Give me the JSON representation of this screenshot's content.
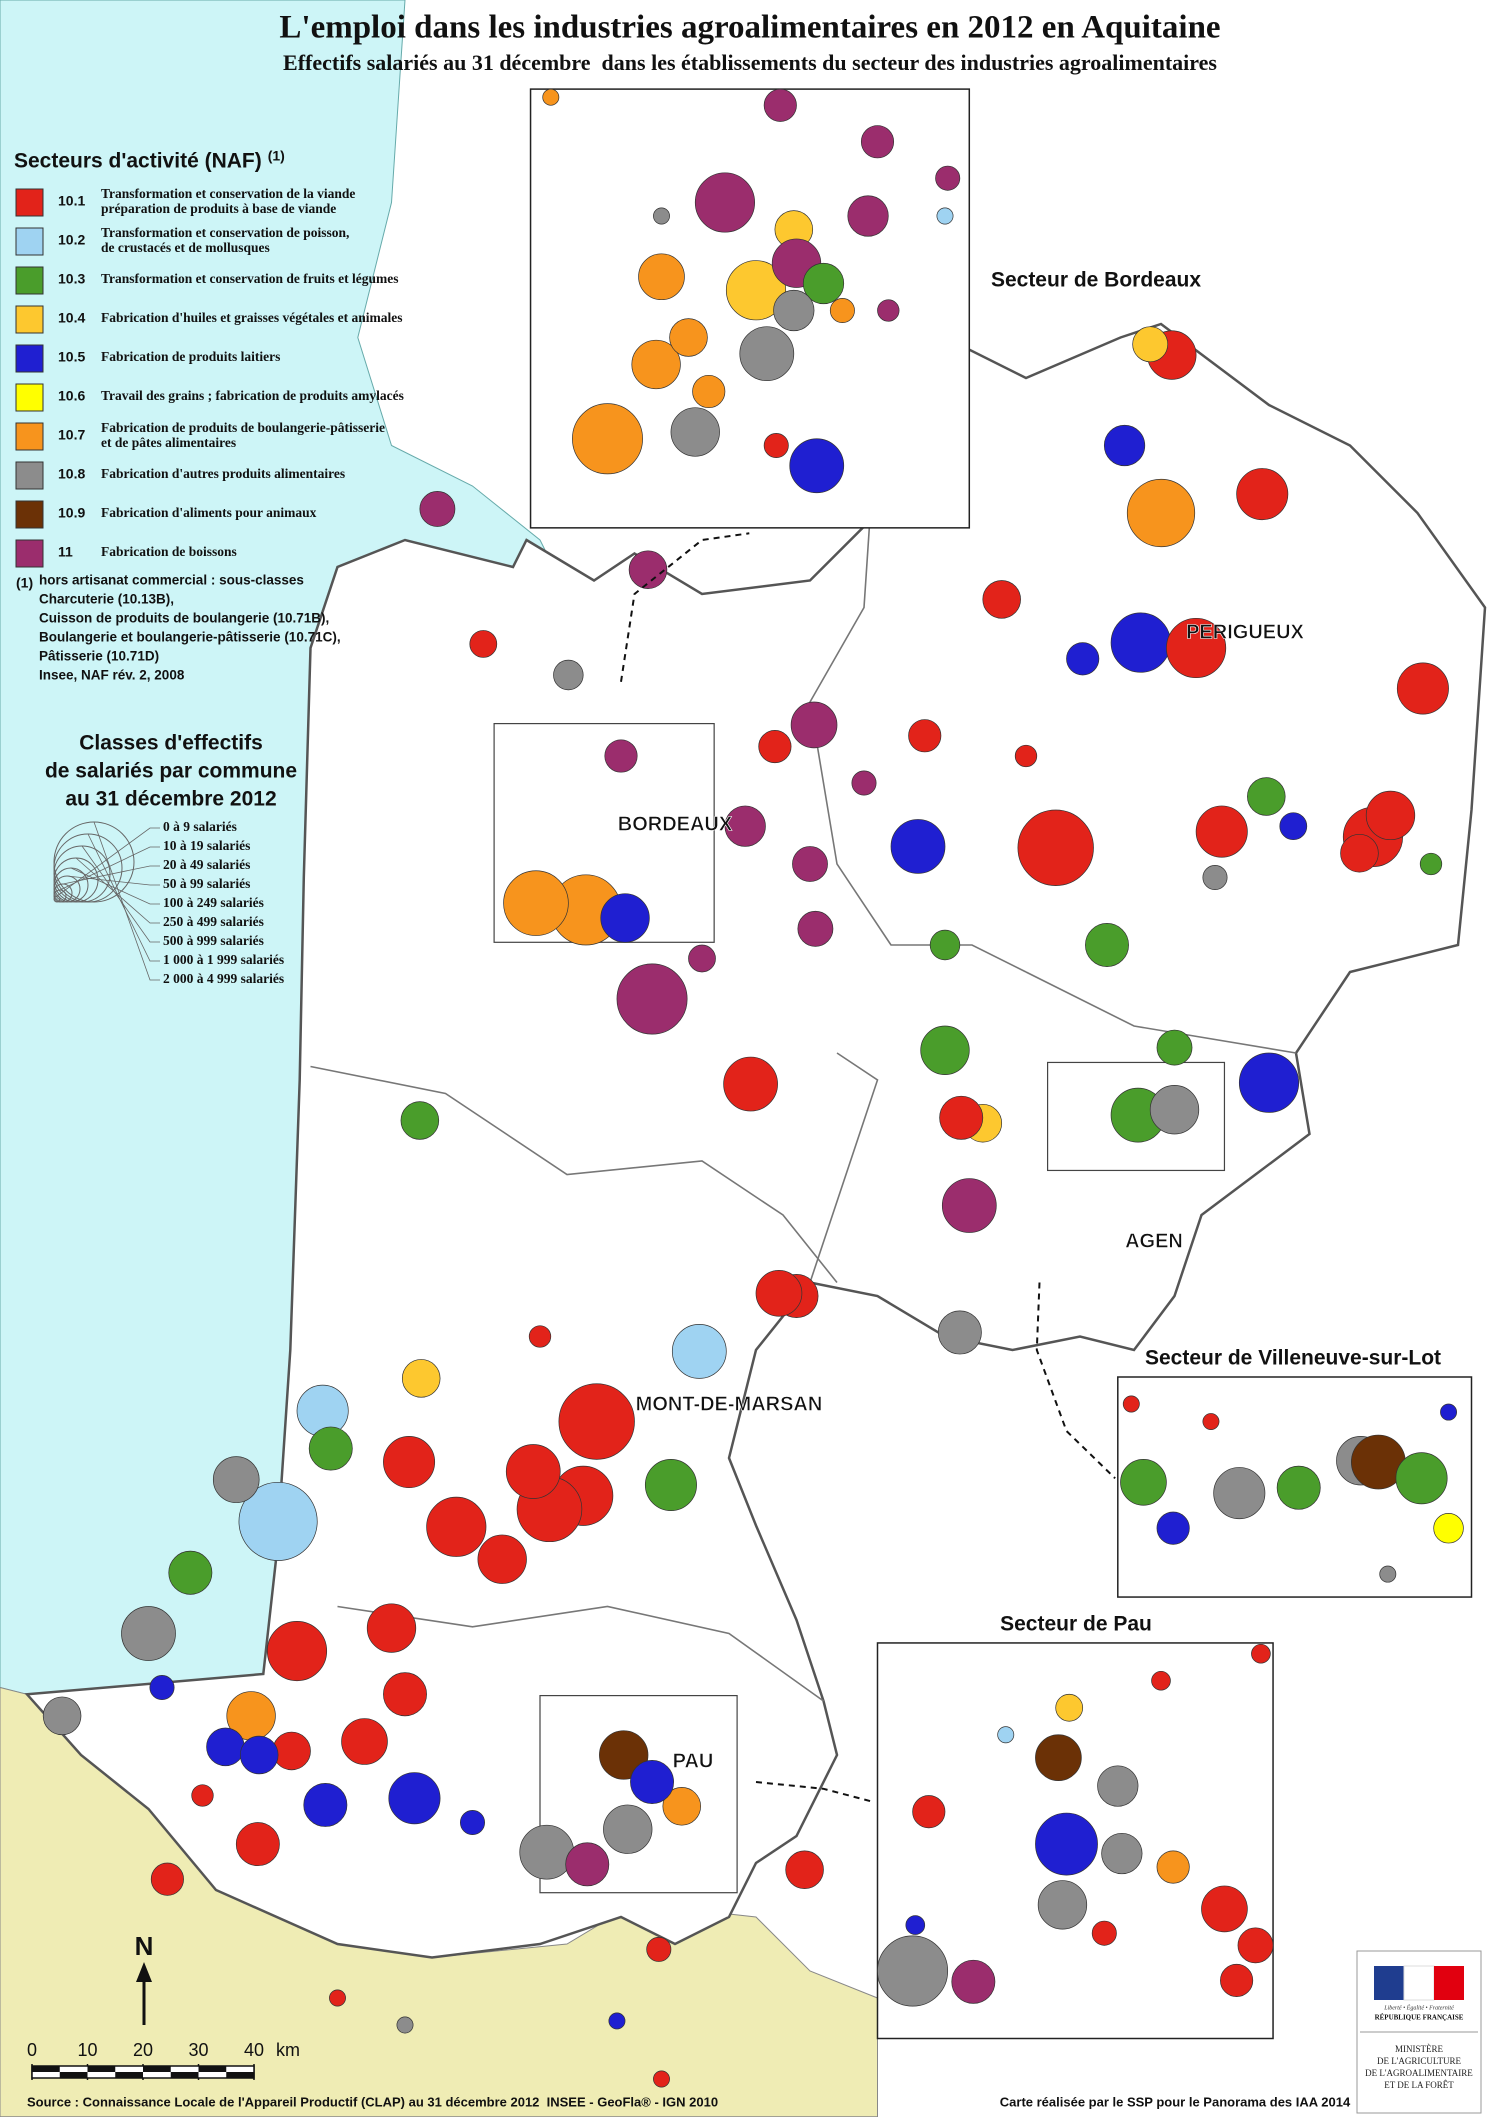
{
  "title": "L'emploi dans les industries agroalimentaires en 2012 en Aquitaine",
  "subtitle": "Effectifs salariés au 31 décembre  dans les établissements du secteur des industries agroalimentaires",
  "legend": {
    "title": "Secteurs d'activité (NAF)",
    "title_note": "(1)",
    "items": [
      {
        "code": "10.1",
        "lines": [
          "Transformation et conservation de la viande",
          "préparation de produits à base de viande"
        ],
        "color": "#e2231a"
      },
      {
        "code": "10.2",
        "lines": [
          "Transformation et conservation de poisson,",
          "de crustacés et de mollusques"
        ],
        "color": "#9fd3f2"
      },
      {
        "code": "10.3",
        "lines": [
          "Transformation et conservation de fruits et légumes"
        ],
        "color": "#4a9d2b"
      },
      {
        "code": "10.4",
        "lines": [
          "Fabrication d'huiles et graisses végétales et animales"
        ],
        "color": "#fdc82f"
      },
      {
        "code": "10.5",
        "lines": [
          "Fabrication de produits laitiers"
        ],
        "color": "#1f1fd1"
      },
      {
        "code": "10.6",
        "lines": [
          "Travail des grains ; fabrication de produits amylacés"
        ],
        "color": "#ffff00"
      },
      {
        "code": "10.7",
        "lines": [
          "Fabrication de produits de boulangerie-pâtisserie",
          "et de pâtes alimentaires"
        ],
        "color": "#f7941d"
      },
      {
        "code": "10.8",
        "lines": [
          "Fabrication d'autres produits alimentaires"
        ],
        "color": "#8c8c8c"
      },
      {
        "code": "10.9",
        "lines": [
          "Fabrication d'aliments pour animaux"
        ],
        "color": "#6b3106"
      },
      {
        "code": "11",
        "lines": [
          "Fabrication de boissons"
        ],
        "color": "#9b2d6d"
      }
    ]
  },
  "note": {
    "marker": "(1)",
    "lines": [
      "hors artisanat commercial : sous-classes",
      "Charcuterie (10.13B),",
      "Cuisson de produits de boulangerie (10.71B),",
      "Boulangerie et boulangerie-pâtisserie (10.71C),",
      "Pâtisserie (10.71D)",
      "Insee, NAF rév. 2, 2008"
    ]
  },
  "size_legend": {
    "title_lines": [
      "Classes d'effectifs",
      "de salariés par commune",
      "au 31 décembre 2012"
    ],
    "classes": [
      "0 à 9 salariés",
      "10 à 19 salariés",
      "20 à 49 salariés",
      "50 à 99 salariés",
      "100 à 249 salariés",
      "250 à 499 salariés",
      "500 à 999 salariés",
      "1 000 à 1 999 salariés",
      "2 000 à 4 999 salariés"
    ]
  },
  "places": [
    "BORDEAUX",
    "PERIGUEUX",
    "AGEN",
    "MONT-DE-MARSAN",
    "PAU"
  ],
  "sectors": [
    "Secteur de Bordeaux",
    "Secteur de Villeneuve-sur-Lot",
    "Secteur de Pau"
  ],
  "north": "N",
  "scale": {
    "ticks": [
      0,
      10,
      20,
      30,
      40
    ],
    "unit": "km"
  },
  "source": "Source : Connaissance Locale de l'Appareil Productif (CLAP) au 31 décembre 2012  INSEE - GeoFla® - IGN 2010",
  "credit": "Carte réalisée par le SSP pour le Panorama des IAA 2014",
  "logo": {
    "motto": "Liberté • Égalité • Fraternité",
    "republic": "RÉPUBLIQUE FRANÇAISE",
    "ministry": [
      "MINISTÈRE",
      "DE L'AGRICULTURE",
      "DE L'AGROALIMENTAIRE",
      "ET DE LA FORÊT"
    ]
  }
}
